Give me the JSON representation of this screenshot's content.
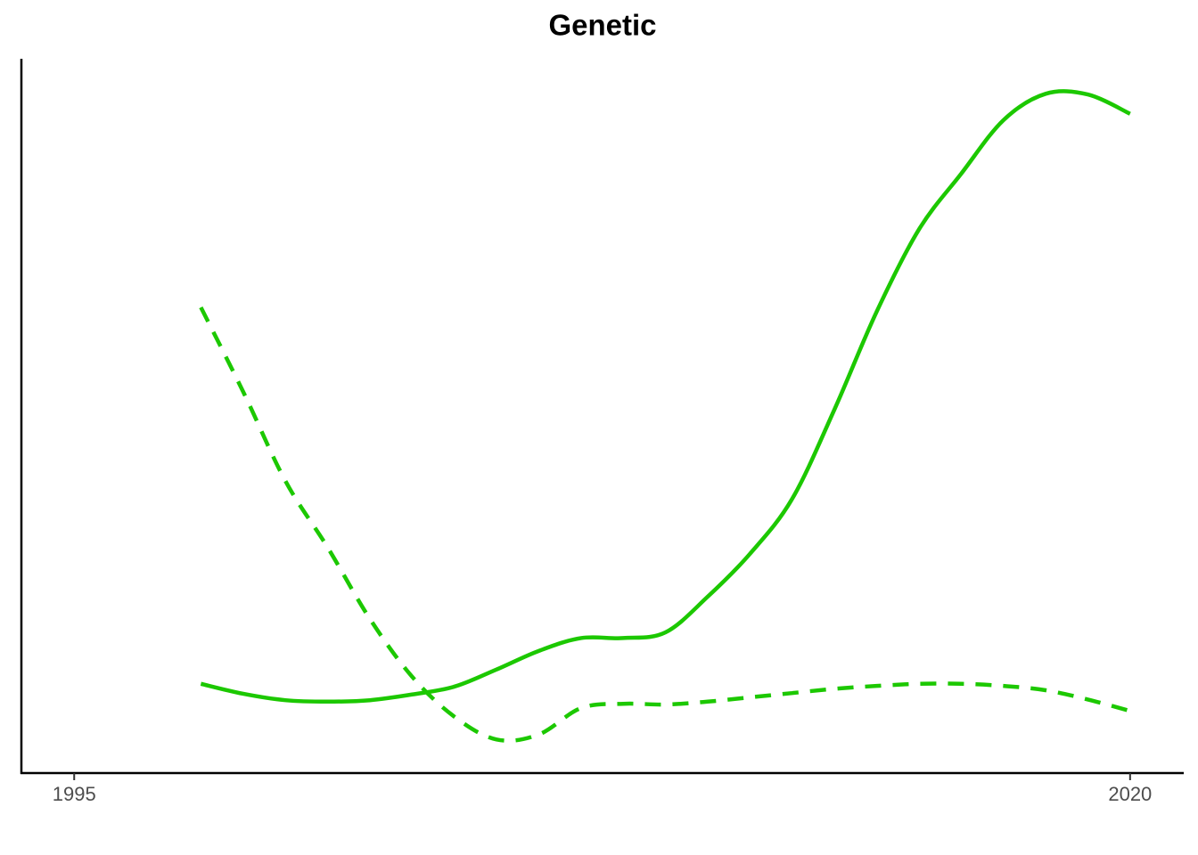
{
  "chart_data": {
    "type": "line",
    "title": "Genetic",
    "x": [
      1998,
      1999,
      2000,
      2001,
      2002,
      2003,
      2004,
      2005,
      2006,
      2007,
      2008,
      2009,
      2010,
      2011,
      2012,
      2013,
      2014,
      2015,
      2016,
      2017,
      2018,
      2019,
      2020
    ],
    "series": [
      {
        "color": "#1cc800",
        "line_style": "solid",
        "values": [
          12.5,
          11.1,
          10.2,
          10.0,
          10.2,
          11.0,
          12.1,
          14.5,
          17.1,
          18.9,
          18.9,
          19.7,
          24.7,
          30.7,
          38.4,
          50.9,
          64.6,
          76.1,
          83.9,
          91.4,
          95.1,
          95.0,
          92.3
        ]
      },
      {
        "color": "#1cc800",
        "line_style": "dashed",
        "values": [
          65.2,
          53.4,
          40.9,
          31.6,
          21.6,
          13.5,
          7.9,
          4.7,
          5.4,
          9.1,
          9.7,
          9.6,
          10.0,
          10.6,
          11.2,
          11.8,
          12.2,
          12.5,
          12.5,
          12.2,
          11.6,
          10.3,
          8.7
        ]
      }
    ],
    "xlim": [
      1993.75,
      2021.27
    ],
    "xticks": [
      1995,
      2020
    ],
    "ylim": [
      0,
      100
    ],
    "grid": false
  }
}
